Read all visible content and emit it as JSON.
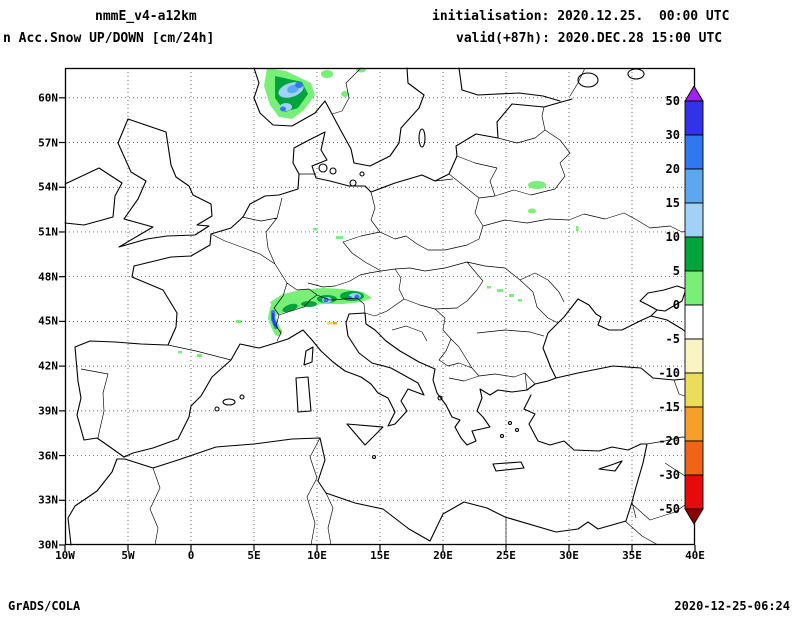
{
  "header": {
    "model": "nmmE_v4-a12km",
    "variable": "n Acc.Snow UP/DOWN [cm/24h]",
    "initialisation": "initialisation: 2020.12.25.  00:00 UTC",
    "valid": "valid(+87h): 2020.DEC.28 15:00 UTC"
  },
  "map": {
    "lat_labels": [
      "60N",
      "57N",
      "54N",
      "51N",
      "48N",
      "45N",
      "42N",
      "39N",
      "36N",
      "33N",
      "30N"
    ],
    "lon_labels": [
      "10W",
      "5W",
      "0",
      "5E",
      "10E",
      "15E",
      "20E",
      "25E",
      "30E",
      "35E",
      "40E"
    ],
    "snow_regions": [
      {
        "area": "southern Norway",
        "shading": "green with light-blue/blue core",
        "approx_max_cm": 20
      },
      {
        "area": "Alps (Switzerland/Austria/N Italy)",
        "shading": "green band with blue cores",
        "approx_max_cm": 30
      },
      {
        "area": "western Alps sliver",
        "shading": "blue-violet over green",
        "approx_max_cm": 30
      },
      {
        "area": "Pyrenees",
        "shading": "light green specks",
        "approx_max_cm": 5
      },
      {
        "area": "Massif Central",
        "shading": "light green speck",
        "approx_max_cm": 5
      },
      {
        "area": "central Germany",
        "shading": "light green specks",
        "approx_max_cm": 5
      },
      {
        "area": "Belarus / Baltic region",
        "shading": "light green patches",
        "approx_max_cm": 5
      },
      {
        "area": "Carpathians (Romania)",
        "shading": "light green specks",
        "approx_max_cm": 5
      },
      {
        "area": "northern Apennines",
        "shading": "yellow/orange specks (snow decrease)",
        "approx_max_cm": -15
      }
    ]
  },
  "colorbar": {
    "labels": [
      "50",
      "30",
      "20",
      "15",
      "10",
      "5",
      "0",
      "-5",
      "-10",
      "-15",
      "-20",
      "-30",
      "-50"
    ],
    "colors": [
      "#A020F0",
      "#3232E8",
      "#2E78F0",
      "#5AA8F0",
      "#A0D2F5",
      "#00A43C",
      "#78F078",
      "#FFFFFF",
      "#FAF3C3",
      "#EBDC5A",
      "#F5A028",
      "#F06414",
      "#E60A0A",
      "#8C0000"
    ]
  },
  "footer": {
    "left": "GrADS/COLA",
    "right": "2020-12-25-06:24"
  }
}
